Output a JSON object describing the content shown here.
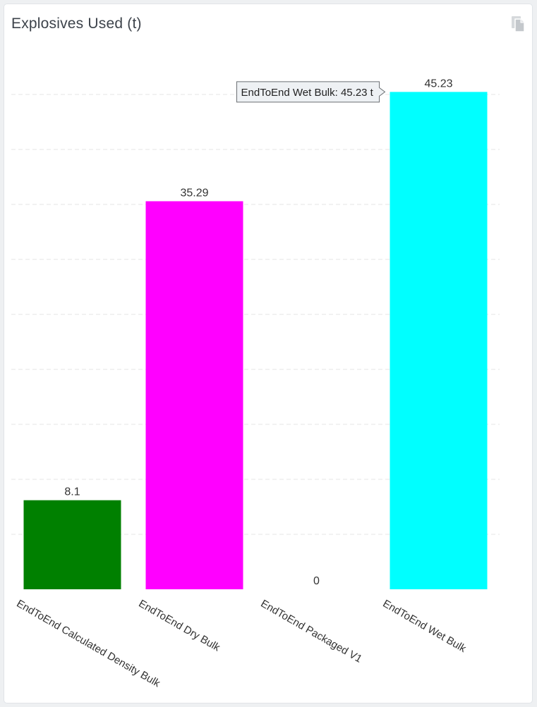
{
  "panel": {
    "title": "Explosives Used (t)",
    "copy_icon": "copy-icon"
  },
  "chart_data": {
    "type": "bar",
    "title": "Explosives Used (t)",
    "xlabel": "",
    "ylabel": "",
    "categories": [
      "EndToEnd Calculated Density Bulk",
      "EndToEnd Dry Bulk",
      "EndToEnd Packaged V1",
      "EndToEnd Wet Bulk"
    ],
    "values": [
      8.1,
      35.29,
      0,
      45.23
    ],
    "value_labels": [
      "8.1",
      "35.29",
      "0",
      "45.23"
    ],
    "colors": [
      "#008000",
      "#ff00ff",
      "#ffff00",
      "#00ffff"
    ],
    "ylim": [
      0,
      45
    ],
    "grid": true,
    "grid_style": "dashed",
    "legend": "none",
    "tooltip": {
      "text": "EndToEnd Wet Bulk: 45.23 t",
      "category_index": 3
    }
  }
}
